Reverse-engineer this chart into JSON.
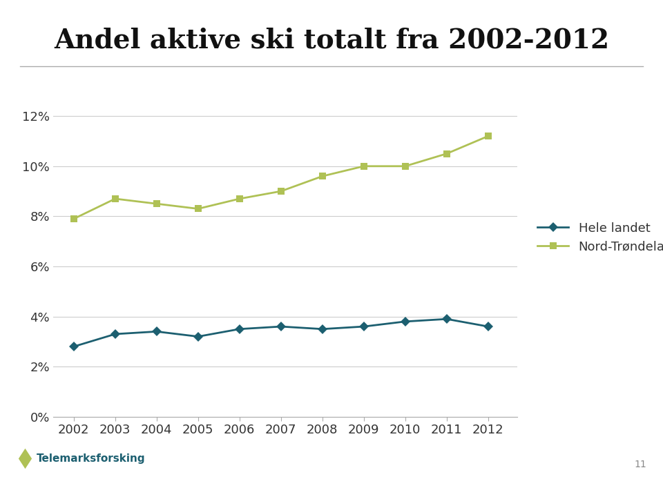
{
  "title": "Andel aktive ski totalt fra 2002-2012",
  "years": [
    2002,
    2003,
    2004,
    2005,
    2006,
    2007,
    2008,
    2009,
    2010,
    2011,
    2012
  ],
  "hele_landet": [
    0.028,
    0.033,
    0.034,
    0.032,
    0.035,
    0.036,
    0.035,
    0.036,
    0.038,
    0.039,
    0.036
  ],
  "nord_trondelag": [
    0.079,
    0.087,
    0.085,
    0.083,
    0.087,
    0.09,
    0.096,
    0.1,
    0.1,
    0.105,
    0.112
  ],
  "hele_landet_color": "#1c5f70",
  "nord_trondelag_color": "#afc155",
  "background_color": "#ffffff",
  "footer_color": "#d8d8d8",
  "title_fontsize": 28,
  "legend_fontsize": 13,
  "tick_fontsize": 13,
  "ylim": [
    0,
    0.13
  ],
  "yticks": [
    0.0,
    0.02,
    0.04,
    0.06,
    0.08,
    0.1,
    0.12
  ],
  "ytick_labels": [
    "0%",
    "2%",
    "4%",
    "6%",
    "8%",
    "10%",
    "12%"
  ],
  "legend_labels": [
    "Hele landet",
    "Nord-Trøndelag"
  ],
  "grid_color": "#cccccc",
  "line_width": 2.0,
  "marker_size": 7
}
